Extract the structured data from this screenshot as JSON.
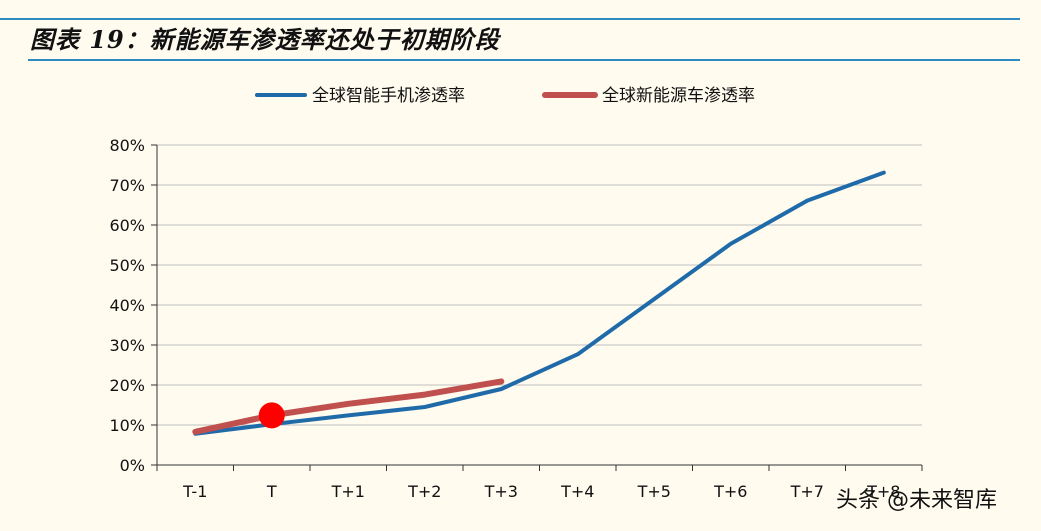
{
  "title": "图表 19：新能源车渗透率还处于初期阶段",
  "watermark": "头条 @未来智库",
  "chart_data": {
    "type": "line",
    "categories": [
      "T-1",
      "T",
      "T+1",
      "T+2",
      "T+3",
      "T+4",
      "T+5",
      "T+6",
      "T+7",
      "T+8"
    ],
    "ylim": [
      0,
      80
    ],
    "y_ticks": [
      "0%",
      "10%",
      "20%",
      "30%",
      "40%",
      "50%",
      "60%",
      "70%",
      "80%"
    ],
    "grid": true,
    "legend_placement": "top-center",
    "series": [
      {
        "name": "全球智能手机渗透率",
        "color": "#1F6BAA",
        "values": [
          7.8,
          10.2,
          12.4,
          14.5,
          19.0,
          27.7,
          41.5,
          55.3,
          66.1,
          73.1
        ]
      },
      {
        "name": "全球新能源车渗透率",
        "color": "#C0504D",
        "values": [
          8.3,
          12.4,
          15.3,
          17.6,
          20.9,
          null,
          null,
          null,
          null,
          null
        ]
      }
    ],
    "highlight": {
      "category": "T",
      "value": 12.4,
      "color": "#FF0000"
    }
  }
}
